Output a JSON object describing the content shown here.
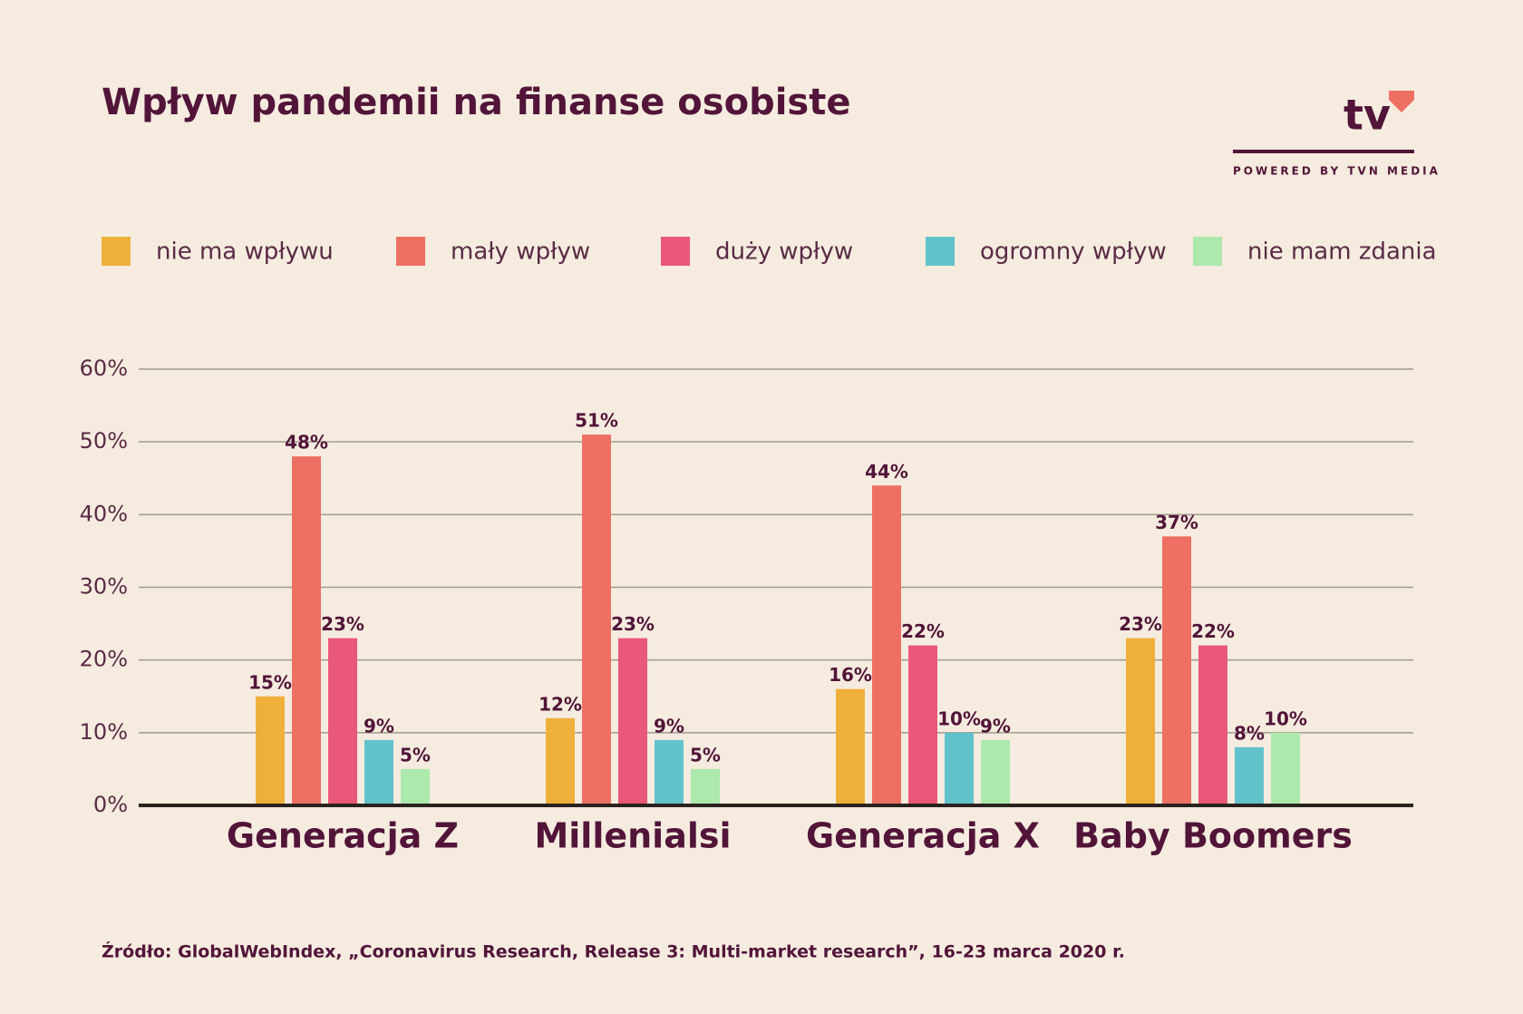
{
  "branding": {
    "logo": "tv",
    "tagline": "POWERED BY TVN MEDIA"
  },
  "chart_data": {
    "type": "bar",
    "title": "Wpływ pandemii na finanse osobiste",
    "source": "Źródło: GlobalWebIndex, „Coronavirus Research, Release 3: Multi-market research”, 16-23 marca 2020 r.",
    "categories": [
      "Generacja Z",
      "Millenialsi",
      "Generacja X",
      "Baby Boomers"
    ],
    "series": [
      {
        "name": "nie ma wpływu",
        "color": "#efb03b",
        "values": [
          15,
          12,
          16,
          23
        ],
        "value_labels": [
          "15%",
          "12%",
          "16%",
          "23%"
        ]
      },
      {
        "name": "mały wpływ",
        "color": "#ee7063",
        "values": [
          48,
          51,
          44,
          37
        ],
        "value_labels": [
          "48%",
          "51%",
          "44%",
          "37%"
        ]
      },
      {
        "name": "duży wpływ",
        "color": "#e95878",
        "values": [
          23,
          23,
          22,
          22
        ],
        "value_labels": [
          "23%",
          "23%",
          "22%",
          "22%"
        ]
      },
      {
        "name": "ogromny wpływ",
        "color": "#62c2cc",
        "values": [
          9,
          9,
          10,
          8
        ],
        "value_labels": [
          "9%",
          "9%",
          "10%",
          "8%"
        ]
      },
      {
        "name": "nie mam zdania",
        "color": "#ade8ad",
        "values": [
          5,
          5,
          9,
          10
        ],
        "value_labels": [
          "5%",
          "5%",
          "9%",
          "10%"
        ]
      }
    ],
    "ylim": [
      0,
      60
    ],
    "yticks": [
      {
        "value": 0,
        "label": "0%"
      },
      {
        "value": 10,
        "label": "10%"
      },
      {
        "value": 20,
        "label": "20%"
      },
      {
        "value": 30,
        "label": "30%"
      },
      {
        "value": 40,
        "label": "40%"
      },
      {
        "value": 50,
        "label": "50%"
      },
      {
        "value": 60,
        "label": "60%"
      }
    ],
    "grid": true
  }
}
